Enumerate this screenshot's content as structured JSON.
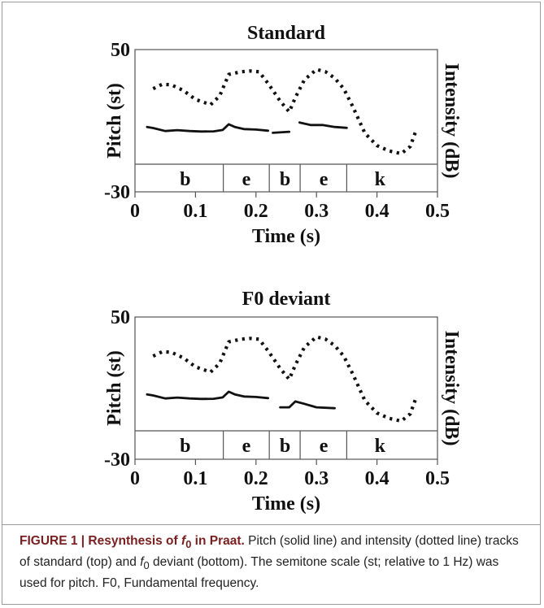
{
  "caption": {
    "label": "FIGURE 1 | Resynthesis of",
    "label_italic": "f",
    "label_sub": "0",
    "label_tail": " in Praat.",
    "text_1": " Pitch (solid line) and intensity (dotted line) tracks of standard (top) and ",
    "text_italic": "f",
    "text_sub": "0",
    "text_2": " deviant (bottom). The semitone scale (st; relative to 1 Hz) was used for pitch. F0, Fundamental frequency."
  },
  "chart_data": [
    {
      "type": "line",
      "title": "Standard",
      "xlabel": "Time (s)",
      "ylabel_left": "Pitch (st)",
      "ylabel_right": "Intensity (dB)",
      "xlim": [
        0,
        0.5
      ],
      "ylim": [
        -30,
        50
      ],
      "x_ticks": [
        "0",
        "0.1",
        "0.2",
        "0.3",
        "0.4",
        "0.5"
      ],
      "y_ticks": [
        "50",
        "-30"
      ],
      "grid": false,
      "tier": {
        "boundaries": [
          0.146,
          0.222,
          0.273,
          0.35
        ],
        "labels": [
          {
            "text": "b",
            "x": 0.083
          },
          {
            "text": "e",
            "x": 0.184
          },
          {
            "text": "b",
            "x": 0.248
          },
          {
            "text": "e",
            "x": 0.312
          },
          {
            "text": "k",
            "x": 0.405
          }
        ]
      },
      "series": [
        {
          "style": "solid",
          "segments": [
            [
              [
                0.02,
                6.5
              ],
              [
                0.03,
                5.9
              ],
              [
                0.05,
                4.2
              ],
              [
                0.07,
                4.7
              ],
              [
                0.09,
                4.2
              ],
              [
                0.11,
                3.9
              ],
              [
                0.13,
                4.0
              ],
              [
                0.145,
                4.8
              ],
              [
                0.155,
                8.0
              ],
              [
                0.165,
                6.5
              ],
              [
                0.18,
                5.3
              ],
              [
                0.2,
                5.0
              ],
              [
                0.22,
                4.4
              ]
            ],
            [
              [
                0.228,
                3.2
              ],
              [
                0.255,
                3.8
              ]
            ],
            [
              [
                0.272,
                9.0
              ],
              [
                0.29,
                7.6
              ],
              [
                0.31,
                7.6
              ],
              [
                0.33,
                6.5
              ],
              [
                0.35,
                6.0
              ]
            ]
          ]
        },
        {
          "style": "dotted",
          "points": [
            [
              0.03,
              28.0
            ],
            [
              0.045,
              30.5
            ],
            [
              0.06,
              30.2
            ],
            [
              0.08,
              27.0
            ],
            [
              0.1,
              22.0
            ],
            [
              0.125,
              19.0
            ],
            [
              0.14,
              24.0
            ],
            [
              0.155,
              36.0
            ],
            [
              0.175,
              37.5
            ],
            [
              0.19,
              38.0
            ],
            [
              0.205,
              37.5
            ],
            [
              0.22,
              31.0
            ],
            [
              0.24,
              21.0
            ],
            [
              0.255,
              15.0
            ],
            [
              0.265,
              23.0
            ],
            [
              0.28,
              33.0
            ],
            [
              0.3,
              38.8
            ],
            [
              0.315,
              37.5
            ],
            [
              0.33,
              34.0
            ],
            [
              0.345,
              28.0
            ],
            [
              0.36,
              18.0
            ],
            [
              0.38,
              3.0
            ],
            [
              0.4,
              -4.0
            ],
            [
              0.42,
              -7.0
            ],
            [
              0.44,
              -8.5
            ],
            [
              0.455,
              -4.5
            ],
            [
              0.465,
              5.0
            ]
          ]
        }
      ]
    },
    {
      "type": "line",
      "title": "F0 deviant",
      "xlabel": "Time (s)",
      "ylabel_left": "Pitch (st)",
      "ylabel_right": "Intensity (dB)",
      "xlim": [
        0,
        0.5
      ],
      "ylim": [
        -30,
        50
      ],
      "x_ticks": [
        "0",
        "0.1",
        "0.2",
        "0.3",
        "0.4",
        "0.5"
      ],
      "y_ticks": [
        "50",
        "-30"
      ],
      "grid": false,
      "tier": {
        "boundaries": [
          0.146,
          0.222,
          0.273,
          0.35
        ],
        "labels": [
          {
            "text": "b",
            "x": 0.083
          },
          {
            "text": "e",
            "x": 0.184
          },
          {
            "text": "b",
            "x": 0.248
          },
          {
            "text": "e",
            "x": 0.312
          },
          {
            "text": "k",
            "x": 0.405
          }
        ]
      },
      "series": [
        {
          "style": "solid",
          "segments": [
            [
              [
                0.02,
                6.5
              ],
              [
                0.03,
                5.9
              ],
              [
                0.05,
                4.2
              ],
              [
                0.07,
                4.7
              ],
              [
                0.09,
                4.2
              ],
              [
                0.11,
                3.9
              ],
              [
                0.13,
                4.0
              ],
              [
                0.145,
                4.8
              ],
              [
                0.155,
                8.0
              ],
              [
                0.165,
                6.5
              ],
              [
                0.18,
                5.3
              ],
              [
                0.2,
                5.0
              ],
              [
                0.22,
                4.4
              ]
            ],
            [
              [
                0.24,
                -0.8
              ],
              [
                0.255,
                -0.8
              ],
              [
                0.265,
                2.5
              ],
              [
                0.28,
                1.2
              ],
              [
                0.3,
                -0.8
              ],
              [
                0.33,
                -1.3
              ]
            ]
          ]
        },
        {
          "style": "dotted",
          "points": [
            [
              0.03,
              28.0
            ],
            [
              0.045,
              30.5
            ],
            [
              0.06,
              30.2
            ],
            [
              0.08,
              27.0
            ],
            [
              0.1,
              22.0
            ],
            [
              0.125,
              19.0
            ],
            [
              0.14,
              24.0
            ],
            [
              0.155,
              36.0
            ],
            [
              0.175,
              37.5
            ],
            [
              0.19,
              38.0
            ],
            [
              0.205,
              37.5
            ],
            [
              0.22,
              31.0
            ],
            [
              0.24,
              21.0
            ],
            [
              0.255,
              15.0
            ],
            [
              0.265,
              23.0
            ],
            [
              0.28,
              33.0
            ],
            [
              0.3,
              38.8
            ],
            [
              0.315,
              37.5
            ],
            [
              0.33,
              34.0
            ],
            [
              0.345,
              28.0
            ],
            [
              0.36,
              18.0
            ],
            [
              0.38,
              3.0
            ],
            [
              0.4,
              -4.0
            ],
            [
              0.42,
              -7.0
            ],
            [
              0.44,
              -8.5
            ],
            [
              0.455,
              -4.5
            ],
            [
              0.465,
              5.0
            ]
          ]
        }
      ]
    }
  ]
}
